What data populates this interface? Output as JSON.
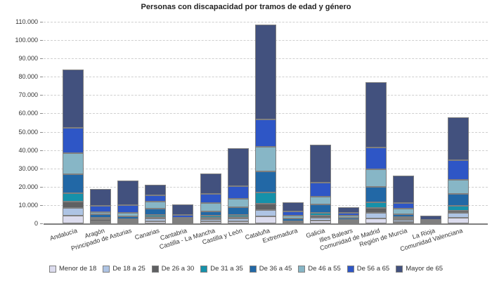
{
  "chart": {
    "y_axis": {
      "tick_labels": [
        "0",
        "10.000",
        "20.000",
        "30.000",
        "40.000",
        "50.000",
        "60.000",
        "70.000",
        "80.000",
        "90.000",
        "100.000",
        "110.000"
      ]
    },
    "colors": {
      "background": "#ffffff",
      "gridline": "#cfcfcf",
      "axis": "#7f7f7f",
      "text": "#333333"
    }
  },
  "chart_data": {
    "type": "bar",
    "stacked": true,
    "title": "Personas con discapacidad por tramos de edad y género",
    "xlabel": "",
    "ylabel": "",
    "ylim": [
      0,
      110000
    ],
    "ytick_step": 10000,
    "grid": true,
    "legend_position": "bottom",
    "categories": [
      "Andalucía",
      "Aragón",
      "Principado de Asturias",
      "Canarias",
      "Cantabria",
      "Castilla - La Mancha",
      "Castilla y León",
      "Cataluña",
      "Extremadura",
      "Galicia",
      "Illes Balears",
      "Comunidad de Madrid",
      "Región de Murcia",
      "La Rioja",
      "Comunidad Valenciana"
    ],
    "series": [
      {
        "name": "Menor de 18",
        "color": "#dcdcee",
        "values": [
          4200,
          400,
          350,
          1270,
          450,
          1050,
          1270,
          3800,
          300,
          1650,
          600,
          2800,
          770,
          150,
          3200
        ]
      },
      {
        "name": "De 18 a 25",
        "color": "#aec4e4",
        "values": [
          4300,
          770,
          500,
          1300,
          450,
          1150,
          1300,
          3450,
          350,
          1530,
          600,
          2950,
          1030,
          180,
          2550
        ]
      },
      {
        "name": "De 26 a 30",
        "color": "#5f6062",
        "values": [
          3200,
          1300,
          700,
          880,
          300,
          1000,
          880,
          3600,
          300,
          1030,
          400,
          2550,
          770,
          100,
          1270
        ]
      },
      {
        "name": "De 31 a 35",
        "color": "#1691aa",
        "values": [
          4700,
          770,
          800,
          1270,
          350,
          1000,
          1030,
          6100,
          350,
          1530,
          500,
          3200,
          990,
          120,
          2560
        ]
      },
      {
        "name": "De 36 a 45",
        "color": "#2268a6",
        "values": [
          10400,
          1760,
          1500,
          3330,
          800,
          2200,
          4450,
          11500,
          1300,
          4480,
          1100,
          8400,
          1540,
          300,
          6400
        ]
      },
      {
        "name": "De 46 a 55",
        "color": "#87b6c6",
        "values": [
          11500,
          1000,
          1900,
          3720,
          600,
          4900,
          4370,
          13400,
          1650,
          4360,
          900,
          9600,
          2800,
          300,
          7900
        ]
      },
      {
        "name": "De 56 a 65",
        "color": "#2e56c6",
        "values": [
          13700,
          3700,
          4350,
          3450,
          1650,
          4800,
          7000,
          14700,
          2180,
          7640,
          1500,
          11900,
          3200,
          750,
          10500
        ]
      },
      {
        "name": "Mayor de 65",
        "color": "#42517e",
        "values": [
          31900,
          9000,
          13400,
          5760,
          5860,
          11200,
          20700,
          51800,
          5100,
          20700,
          3400,
          35800,
          14900,
          2400,
          23600
        ]
      }
    ]
  }
}
